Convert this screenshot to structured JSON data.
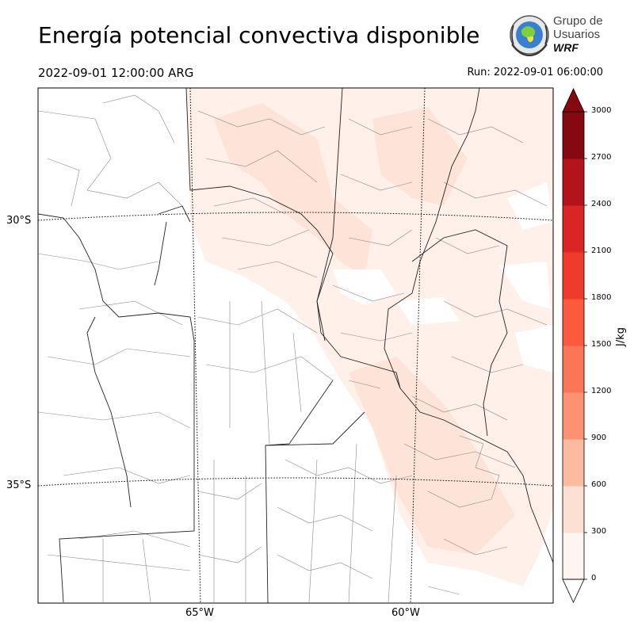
{
  "header": {
    "title": "Energía potencial convectiva disponible",
    "valid_time": "2022-09-01 12:00:00 ARG",
    "run_time": "Run: 2022-09-01 06:00:00"
  },
  "logo": {
    "line1": "Grupo de",
    "line2": "Usuarios",
    "line3": "WRF"
  },
  "map": {
    "lat_labels": [
      "30°S",
      "35°S"
    ],
    "lon_labels": [
      "65°W",
      "60°W"
    ]
  },
  "colorbar": {
    "unit": "J/kg",
    "ticks": [
      "0",
      "300",
      "600",
      "900",
      "1200",
      "1500",
      "1800",
      "2100",
      "2400",
      "2700",
      "3000"
    ],
    "colors": [
      "#fff5f0",
      "#fee0d2",
      "#fcbba1",
      "#fc9272",
      "#fb7656",
      "#fb5a3c",
      "#ef3b2c",
      "#d92523",
      "#b3141b",
      "#860811"
    ],
    "extend": "both"
  }
}
